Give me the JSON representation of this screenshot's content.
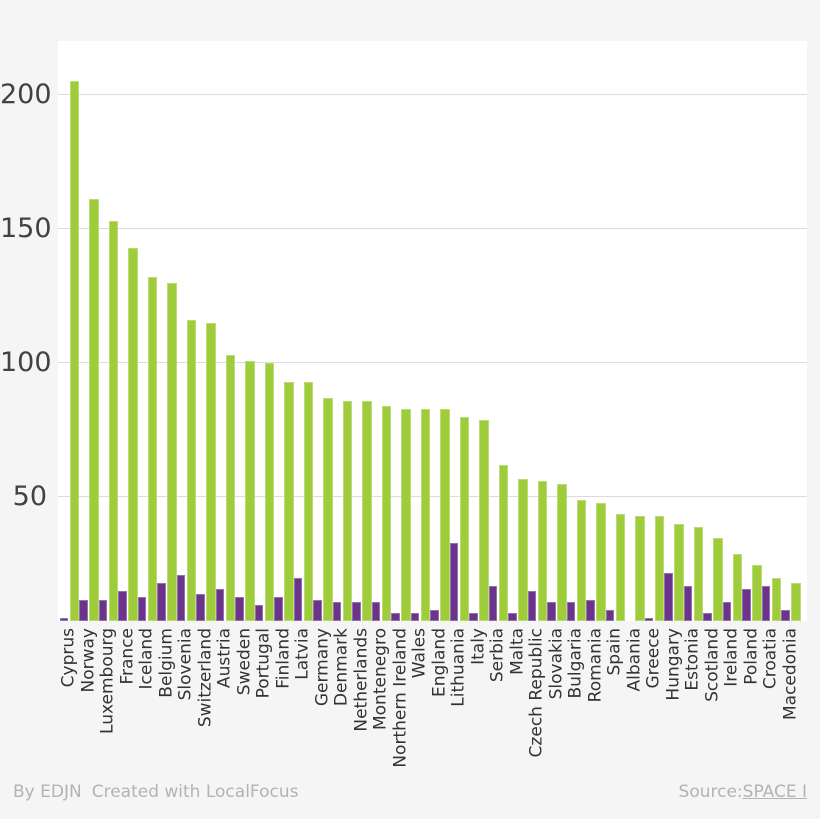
{
  "page": {
    "background": "#f5f5f5",
    "plot_background": "#ffffff",
    "gridline_color": "#dcdcdc"
  },
  "chart_data": {
    "type": "bar",
    "title": "",
    "xlabel": "",
    "ylabel": "",
    "categories": [
      "Cyprus",
      "Norway",
      "Luxembourg",
      "France",
      "Iceland",
      "Belgium",
      "Slovenia",
      "Switzerland",
      "Austria",
      "Sweden",
      "Portugal",
      "Finland",
      "Latvia",
      "Germany",
      "Denmark",
      "Netherlands",
      "Montenegro",
      "Northern Ireland",
      "Wales",
      "England",
      "Lithuania",
      "Italy",
      "Serbia",
      "Malta",
      "Czech Republic",
      "Slovakia",
      "Bulgaria",
      "Romania",
      "Spain",
      "Albania",
      "Greece",
      "Hungary",
      "Estonia",
      "Scotland",
      "Ireland",
      "Poland",
      "Croatia",
      "Macedonia"
    ],
    "series": [
      {
        "name": "green",
        "color": "#9ECC3B",
        "values": [
          205,
          161,
          153,
          143,
          132,
          130,
          116,
          115,
          103,
          101,
          100,
          93,
          93,
          87,
          86,
          86,
          84,
          83,
          83,
          83,
          80,
          79,
          62,
          57,
          56,
          55,
          49,
          48,
          44,
          43,
          43,
          40,
          39,
          35,
          29,
          25,
          20,
          18
        ]
      },
      {
        "name": "purple",
        "color": "#6A348D",
        "values": [
          5,
          12,
          12,
          15,
          13,
          18,
          21,
          14,
          16,
          13,
          10,
          13,
          20,
          12,
          11,
          11,
          11,
          7,
          7,
          8,
          33,
          7,
          17,
          7,
          15,
          11,
          11,
          12,
          8,
          0,
          5,
          22,
          17,
          7,
          11,
          16,
          17,
          8
        ]
      }
    ],
    "yticks": [
      50,
      100,
      150,
      200
    ],
    "ylim": [
      4,
      220
    ],
    "grid": true,
    "legend_position": "none",
    "bar_order": "purple-left-green-right",
    "x_label_rotation": -90
  },
  "footer": {
    "credit_by": "By EDJN",
    "credit_tool": "Created with LocalFocus",
    "source_label": "Source:",
    "source_link_text": "SPACE I"
  }
}
